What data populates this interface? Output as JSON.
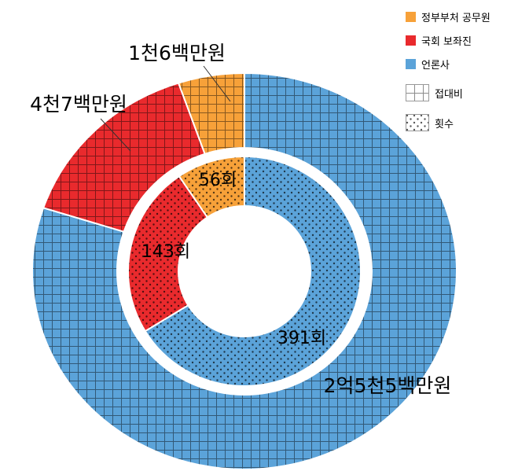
{
  "page": {
    "background": "#ffffff"
  },
  "chart_data": {
    "type": "donut",
    "subtype": "nested-double-ring",
    "title": "",
    "categories": [
      "정부부처 공무원",
      "국회 보좌진",
      "언론사"
    ],
    "colors": [
      "#F7A139",
      "#E92A2D",
      "#5BA3D9"
    ],
    "start_angle_deg": 0,
    "direction": "counterclockwise",
    "grid": false,
    "legend_position": "top-right",
    "rings": [
      {
        "name": "접대비",
        "position": "outer",
        "pattern": "grid",
        "unit": "백만원",
        "values": [
          16,
          47,
          255
        ],
        "point_labels": [
          "1천6백만원",
          "4천7백만원",
          "2억5천5백만원"
        ]
      },
      {
        "name": "횟수",
        "position": "inner",
        "pattern": "dots",
        "unit": "회",
        "values": [
          56,
          143,
          391
        ],
        "point_labels": [
          "56회",
          "143회",
          "391회"
        ]
      }
    ],
    "legend": [
      {
        "label": "정부부처 공무원",
        "swatch": "color-0"
      },
      {
        "label": "국회 보좌진",
        "swatch": "color-1"
      },
      {
        "label": "언론사",
        "swatch": "color-2"
      },
      {
        "label": "접대비",
        "swatch": "pattern-grid"
      },
      {
        "label": "횟수",
        "swatch": "pattern-dots"
      }
    ]
  }
}
